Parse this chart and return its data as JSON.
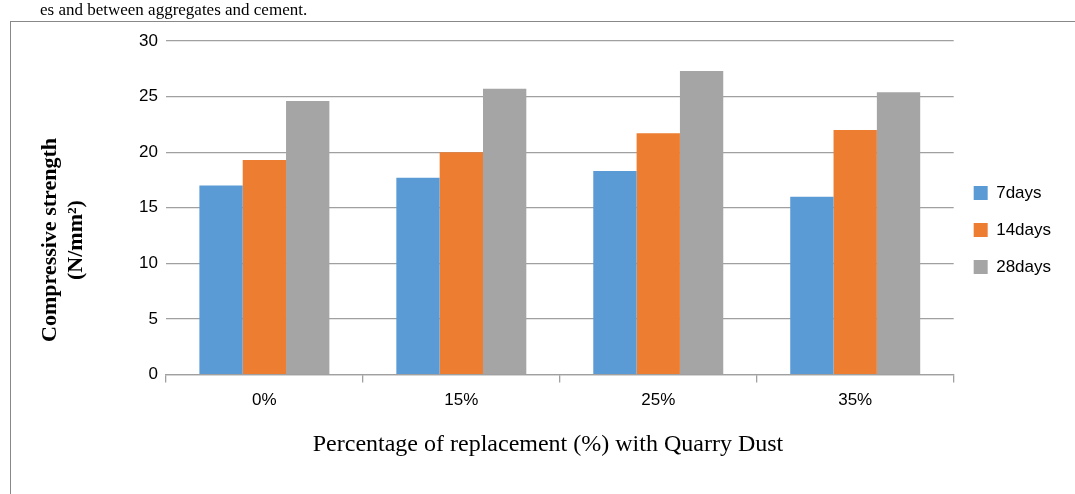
{
  "chart_data": {
    "type": "bar",
    "xlabel": "Percentage of replacement (%) with Quarry Dust",
    "ylabel": "Compressive strength (N/mm²)",
    "annotations": [
      "es and between aggregates and cement."
    ],
    "categories": [
      "0%",
      "15%",
      "25%",
      "35%"
    ],
    "series": [
      {
        "name": "7days",
        "color": "#5b9bd5",
        "values": [
          17.0,
          17.7,
          18.3,
          16.0
        ]
      },
      {
        "name": "14days",
        "color": "#ed7d31",
        "values": [
          19.3,
          20.0,
          21.7,
          22.0
        ]
      },
      {
        "name": "28days",
        "color": "#a5a5a5",
        "values": [
          24.6,
          25.7,
          27.3,
          25.4
        ]
      }
    ],
    "ylim": [
      0,
      30
    ],
    "yticks": [
      0,
      5,
      10,
      15,
      20,
      25,
      30
    ],
    "grid": "y",
    "legend": "right"
  }
}
